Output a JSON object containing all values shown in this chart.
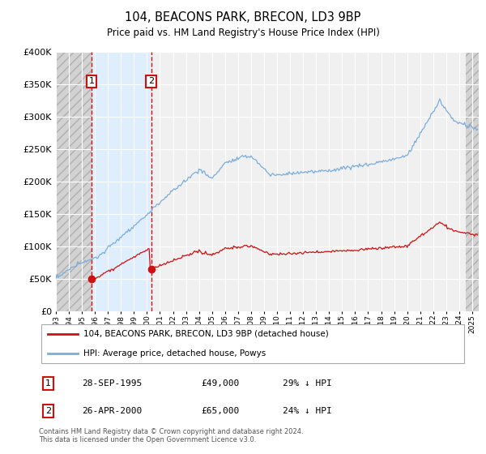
{
  "title": "104, BEACONS PARK, BRECON, LD3 9BP",
  "subtitle": "Price paid vs. HM Land Registry's House Price Index (HPI)",
  "footnote": "Contains HM Land Registry data © Crown copyright and database right 2024.\nThis data is licensed under the Open Government Licence v3.0.",
  "legend_line1": "104, BEACONS PARK, BRECON, LD3 9BP (detached house)",
  "legend_line2": "HPI: Average price, detached house, Powys",
  "transactions": [
    {
      "num": 1,
      "date": "28-SEP-1995",
      "price": 49000,
      "hpi_diff": "29% ↓ HPI",
      "year": 1995.75
    },
    {
      "num": 2,
      "date": "26-APR-2000",
      "price": 65000,
      "hpi_diff": "24% ↓ HPI",
      "year": 2000.32
    }
  ],
  "hpi_color": "#7aaddc",
  "price_color": "#cc1111",
  "marker_color": "#cc1111",
  "shaded_color": "#ddeeff",
  "dashed_color": "#cc1111",
  "ylim": [
    0,
    400000
  ],
  "yticks": [
    0,
    50000,
    100000,
    150000,
    200000,
    250000,
    300000,
    350000,
    400000
  ],
  "xlim_start": 1993.0,
  "xlim_end": 2025.5,
  "plot_bg": "#f0f0f0",
  "fig_bg": "#ffffff"
}
